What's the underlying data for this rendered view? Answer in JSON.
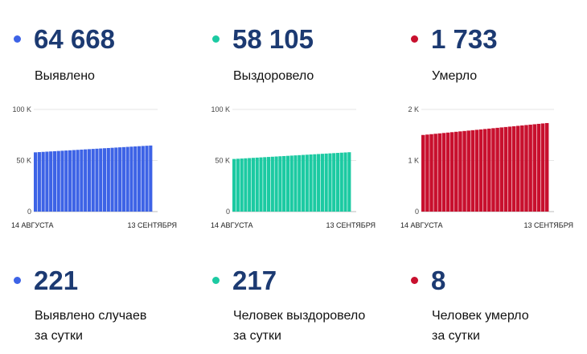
{
  "stats": [
    {
      "total": "64 668",
      "total_label": "Выявлено",
      "daily": "221",
      "daily_label_1": "Выявлено случаев",
      "daily_label_2": "за сутки",
      "color": "#3d63e6"
    },
    {
      "total": "58 105",
      "total_label": "Выздоровело",
      "daily": "217",
      "daily_label_1": "Человек выздоровело",
      "daily_label_2": "за сутки",
      "color": "#1ccaa2"
    },
    {
      "total": "1 733",
      "total_label": "Умерло",
      "daily": "8",
      "daily_label_1": "Человек умерло",
      "daily_label_2": "за сутки",
      "color": "#c8102e"
    }
  ],
  "chart_data": [
    {
      "type": "bar",
      "series": [
        {
          "values_start": 58000,
          "values_end": 64668
        }
      ],
      "x_start": "14 АВГУСТА",
      "x_end": "13 СЕНТЯБРЯ",
      "bar_count": 31,
      "ylim": [
        0,
        100000
      ],
      "yticks": [
        "0",
        "50 K",
        "100 K"
      ],
      "grid": true,
      "color": "#3d63e6"
    },
    {
      "type": "bar",
      "series": [
        {
          "values_start": 51500,
          "values_end": 58105
        }
      ],
      "x_start": "14 АВГУСТА",
      "x_end": "13 СЕНТЯБРЯ",
      "bar_count": 31,
      "ylim": [
        0,
        100000
      ],
      "yticks": [
        "0",
        "50 K",
        "100 K"
      ],
      "grid": true,
      "color": "#1ccaa2"
    },
    {
      "type": "bar",
      "series": [
        {
          "values_start": 1500,
          "values_end": 1733
        }
      ],
      "x_start": "14 АВГУСТА",
      "x_end": "13 СЕНТЯБРЯ",
      "bar_count": 31,
      "ylim": [
        0,
        2000
      ],
      "yticks": [
        "0",
        "1 K",
        "2 K"
      ],
      "grid": true,
      "color": "#c8102e"
    }
  ]
}
